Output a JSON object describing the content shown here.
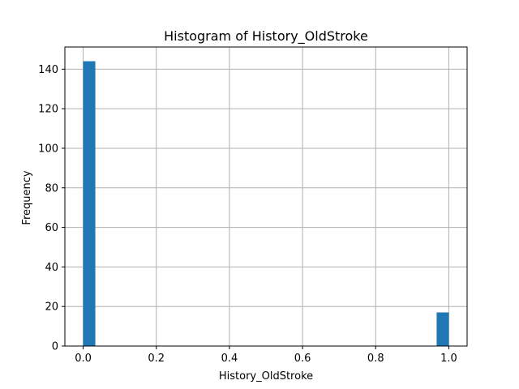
{
  "chart_data": {
    "type": "bar",
    "title": "Histogram of History_OldStroke",
    "xlabel": "History_OldStroke",
    "ylabel": "Frequency",
    "xlim": [
      -0.05,
      1.05
    ],
    "ylim": [
      0,
      151.2
    ],
    "x_ticks": [
      0.0,
      0.2,
      0.4,
      0.6,
      0.8,
      1.0
    ],
    "x_tick_labels": [
      "0.0",
      "0.2",
      "0.4",
      "0.6",
      "0.8",
      "1.0"
    ],
    "y_ticks": [
      0,
      20,
      40,
      60,
      80,
      100,
      120,
      140
    ],
    "y_tick_labels": [
      "0",
      "20",
      "40",
      "60",
      "80",
      "100",
      "120",
      "140"
    ],
    "bins": [
      {
        "x0": 0.0,
        "x1": 0.0333,
        "count": 144
      },
      {
        "x0": 0.9667,
        "x1": 1.0,
        "count": 17
      }
    ],
    "bar_color": "#1f77b4",
    "grid": true,
    "grid_color": "#b0b0b0"
  }
}
